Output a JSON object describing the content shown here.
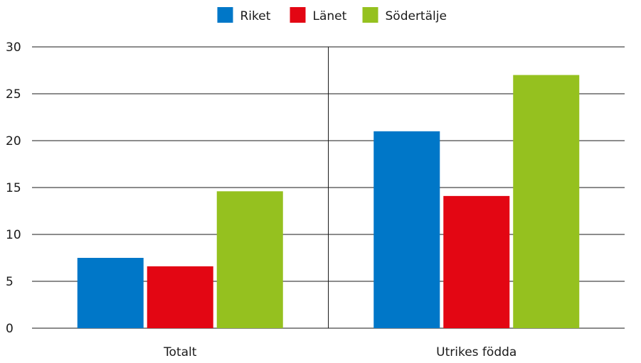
{
  "chart_data": {
    "type": "bar",
    "title": "",
    "xlabel": "",
    "ylabel": "",
    "categories": [
      "Totalt",
      "Utrikes födda"
    ],
    "series": [
      {
        "name": "Riket",
        "color": "#0077C8",
        "values": [
          7.5,
          21.0
        ]
      },
      {
        "name": "Länet",
        "color": "#E30613",
        "values": [
          6.6,
          14.1
        ]
      },
      {
        "name": "Södertälje",
        "color": "#95C11F",
        "values": [
          14.6,
          27.0
        ]
      }
    ],
    "ylim": [
      0,
      30
    ],
    "yticks": [
      0,
      5,
      10,
      15,
      20,
      25,
      30
    ],
    "grid": true,
    "legend": "top-center"
  }
}
